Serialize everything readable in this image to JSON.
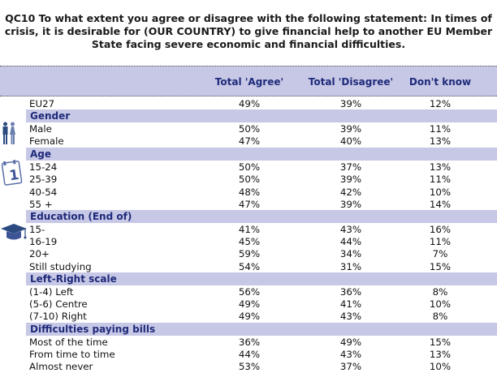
{
  "title": {
    "line1": "QC10 To what extent you agree or disagree with the following statement: In times of",
    "line2": "crisis, it is desirable for (OUR COUNTRY) to give financial help to another EU Member",
    "line3": "State facing severe economic and financial difficulties."
  },
  "columns": [
    "Total 'Agree'",
    "Total 'Disagree'",
    "Don't know"
  ],
  "rows": [
    {
      "label": "EU27",
      "agree": "49%",
      "disagree": "39%",
      "dontknow": "12%"
    }
  ],
  "sections": [
    {
      "title": "Gender",
      "icon": "gender-icon",
      "rows": [
        {
          "label": "Male",
          "agree": "50%",
          "disagree": "39%",
          "dontknow": "11%"
        },
        {
          "label": "Female",
          "agree": "47%",
          "disagree": "40%",
          "dontknow": "13%"
        }
      ]
    },
    {
      "title": "Age",
      "icon": "calendar-icon",
      "rows": [
        {
          "label": "15-24",
          "agree": "50%",
          "disagree": "37%",
          "dontknow": "13%"
        },
        {
          "label": "25-39",
          "agree": "50%",
          "disagree": "39%",
          "dontknow": "11%"
        },
        {
          "label": "40-54",
          "agree": "48%",
          "disagree": "42%",
          "dontknow": "10%"
        },
        {
          "label": "55 +",
          "agree": "47%",
          "disagree": "39%",
          "dontknow": "14%"
        }
      ]
    },
    {
      "title": "Education (End of)",
      "icon": "graduation-cap-icon",
      "rows": [
        {
          "label": "15-",
          "agree": "41%",
          "disagree": "43%",
          "dontknow": "16%"
        },
        {
          "label": "16-19",
          "agree": "45%",
          "disagree": "44%",
          "dontknow": "11%"
        },
        {
          "label": "20+",
          "agree": "59%",
          "disagree": "34%",
          "dontknow": "7%"
        },
        {
          "label": "Still studying",
          "agree": "54%",
          "disagree": "31%",
          "dontknow": "15%"
        }
      ]
    },
    {
      "title": "Left-Right scale",
      "icon": "",
      "rows": [
        {
          "label": "(1-4) Left",
          "agree": "56%",
          "disagree": "36%",
          "dontknow": "8%"
        },
        {
          "label": "(5-6) Centre",
          "agree": "49%",
          "disagree": "41%",
          "dontknow": "10%"
        },
        {
          "label": "(7-10) Right",
          "agree": "49%",
          "disagree": "43%",
          "dontknow": "8%"
        }
      ]
    },
    {
      "title": "Difficulties paying bills",
      "icon": "",
      "rows": [
        {
          "label": "Most of the time",
          "agree": "36%",
          "disagree": "49%",
          "dontknow": "15%"
        },
        {
          "label": "From time to time",
          "agree": "44%",
          "disagree": "43%",
          "dontknow": "13%"
        },
        {
          "label": "Almost never",
          "agree": "53%",
          "disagree": "37%",
          "dontknow": "10%"
        }
      ]
    }
  ],
  "colors": {
    "header_bg": "#c6c8e6",
    "header_text": "#1f2a7a"
  }
}
